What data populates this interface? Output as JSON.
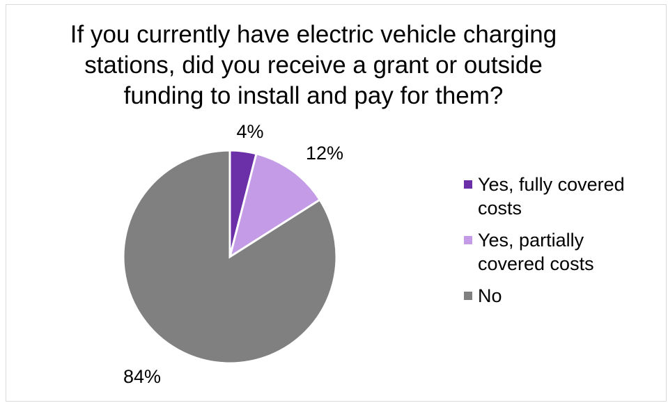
{
  "chart_data": {
    "type": "pie",
    "title_lines": [
      "If you currently have electric vehicle charging",
      "stations, did you receive a grant or outside",
      "funding to install and pay for them?"
    ],
    "slices": [
      {
        "label": "Yes, fully covered costs",
        "value": 4,
        "display": "4%",
        "color": "#6b2fa8"
      },
      {
        "label": "Yes, partially covered costs",
        "value": 12,
        "display": "12%",
        "color": "#c39be6"
      },
      {
        "label": "No",
        "value": 84,
        "display": "84%",
        "color": "#808080"
      }
    ],
    "legend": {
      "position": "right",
      "lines": [
        [
          "Yes, fully covered",
          "costs"
        ],
        [
          "Yes, partially",
          "covered costs"
        ],
        [
          "No"
        ]
      ]
    }
  }
}
